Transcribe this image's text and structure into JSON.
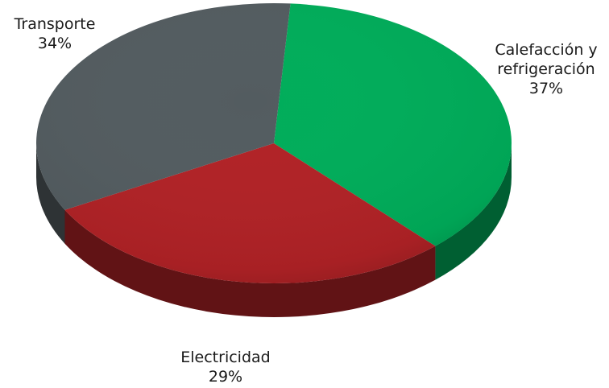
{
  "chart_data": {
    "type": "pie",
    "style": "3d",
    "title": "",
    "slices": [
      {
        "label": "Calefacción y refrigeración",
        "label_lines": [
          "Calefacción y",
          "refrigeración"
        ],
        "value": 37,
        "value_label": "37%",
        "color": "#00ad5a"
      },
      {
        "label": "Electricidad",
        "label_lines": [
          "Electricidad"
        ],
        "value": 29,
        "value_label": "29%",
        "color": "#b12226"
      },
      {
        "label": "Transporte",
        "label_lines": [
          "Transporte"
        ],
        "value": 34,
        "value_label": "34%",
        "color": "#535c60"
      }
    ],
    "legend": "none",
    "labels": "outside"
  }
}
